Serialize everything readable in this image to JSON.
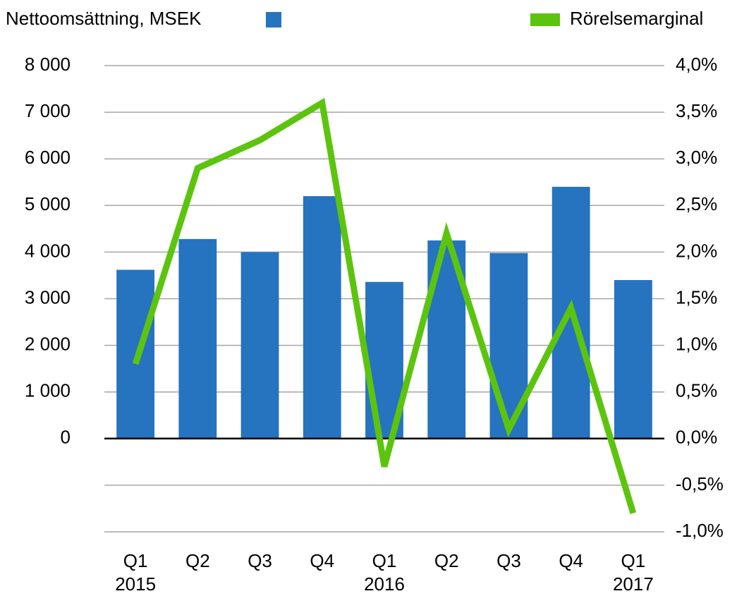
{
  "chart_data": {
    "type": "bar_line",
    "legend": {
      "bars": "Nettoomsättning, MSEK",
      "line": "Rörelsemarginal"
    },
    "categories": [
      "Q1",
      "Q2",
      "Q3",
      "Q4",
      "Q1",
      "Q2",
      "Q3",
      "Q4",
      "Q1"
    ],
    "years": [
      "2015",
      null,
      null,
      null,
      "2016",
      null,
      null,
      null,
      "2017"
    ],
    "series": [
      {
        "name": "Nettoomsättning, MSEK",
        "type": "bar",
        "color": "#2673c0",
        "values": [
          3620,
          4280,
          4000,
          5200,
          3360,
          4250,
          3980,
          5400,
          3400
        ]
      },
      {
        "name": "Rörelsemarginal",
        "type": "line",
        "axis": "y2",
        "color": "#5cc40e",
        "values": [
          0.8,
          2.9,
          3.2,
          3.6,
          -0.3,
          2.2,
          0.1,
          1.4,
          -0.8
        ]
      }
    ],
    "ylim": [
      -2000,
      8000
    ],
    "yticks": [
      {
        "value": 0,
        "label": "0"
      },
      {
        "value": 1000,
        "label": "1 000"
      },
      {
        "value": 2000,
        "label": "2 000"
      },
      {
        "value": 3000,
        "label": "3 000"
      },
      {
        "value": 4000,
        "label": "4 000"
      },
      {
        "value": 5000,
        "label": "5 000"
      },
      {
        "value": 6000,
        "label": "6 000"
      },
      {
        "value": 7000,
        "label": "7 000"
      },
      {
        "value": 8000,
        "label": "8 000"
      }
    ],
    "y2lim": [
      -1,
      4
    ],
    "y2ticks": [
      {
        "value": -1,
        "label": "-1,0%"
      },
      {
        "value": -0.5,
        "label": "-0,5%"
      },
      {
        "value": 0,
        "label": "0,0%"
      },
      {
        "value": 0.5,
        "label": "0,5%"
      },
      {
        "value": 1,
        "label": "1,0%"
      },
      {
        "value": 1.5,
        "label": "1,5%"
      },
      {
        "value": 2,
        "label": "2,0%"
      },
      {
        "value": 2.5,
        "label": "2,5%"
      },
      {
        "value": 3,
        "label": "3,0%"
      },
      {
        "value": 3.5,
        "label": "3,5%"
      },
      {
        "value": 4,
        "label": "4,0%"
      }
    ],
    "grid": true
  }
}
